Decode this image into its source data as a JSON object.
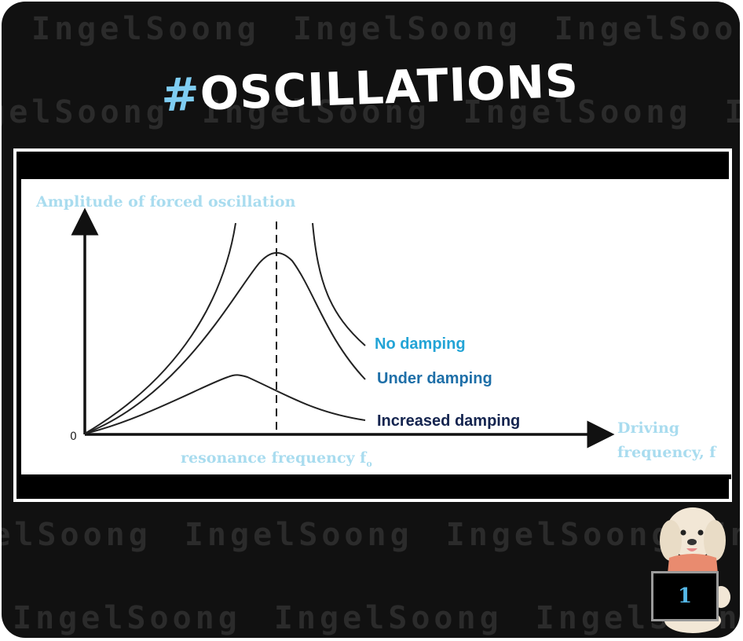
{
  "watermark": {
    "text": "IngelSoong"
  },
  "title": {
    "hash": "#",
    "word": "OSCILLATIONS"
  },
  "diagram": {
    "y_axis_label": "Amplitude of forced oscillation",
    "x_axis_label_line1": "Driving",
    "x_axis_label_line2": "frequency, f",
    "origin_label": "0",
    "resonance_label": "resonance frequency f",
    "resonance_subscript": "o",
    "curves": [
      {
        "name": "No damping",
        "color": "#23a4d6"
      },
      {
        "name": "Under damping",
        "color": "#1e6fa8"
      },
      {
        "name": "Increased damping",
        "color": "#14244f"
      }
    ]
  },
  "badge": {
    "number": "1"
  },
  "colors": {
    "background": "#111111",
    "accent": "#7fcdf2",
    "label_light_blue": "#a9dcef"
  }
}
